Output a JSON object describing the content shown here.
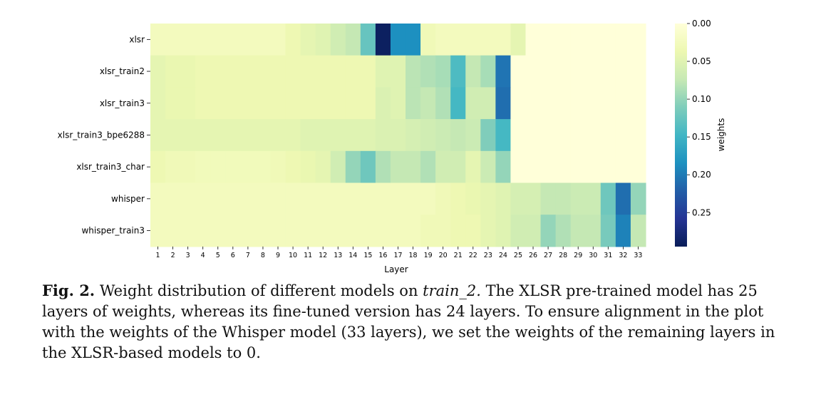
{
  "chart_data": {
    "type": "heatmap",
    "rows": [
      "xlsr",
      "xlsr_train2",
      "xlsr_train3",
      "xlsr_train3_bpe6288",
      "xlsr_train3_char",
      "whisper",
      "whisper_train3"
    ],
    "columns": [
      "1",
      "2",
      "3",
      "4",
      "5",
      "6",
      "7",
      "8",
      "9",
      "10",
      "11",
      "12",
      "13",
      "14",
      "15",
      "16",
      "17",
      "18",
      "19",
      "20",
      "21",
      "22",
      "23",
      "24",
      "25",
      "26",
      "27",
      "28",
      "29",
      "30",
      "31",
      "32",
      "33"
    ],
    "values": [
      [
        0.025,
        0.025,
        0.025,
        0.025,
        0.025,
        0.025,
        0.025,
        0.025,
        0.025,
        0.035,
        0.045,
        0.05,
        0.065,
        0.075,
        0.125,
        0.29,
        0.185,
        0.185,
        0.03,
        0.025,
        0.025,
        0.025,
        0.025,
        0.025,
        0.045,
        0,
        0,
        0,
        0,
        0,
        0,
        0,
        0
      ],
      [
        0.045,
        0.04,
        0.04,
        0.035,
        0.035,
        0.035,
        0.035,
        0.035,
        0.035,
        0.035,
        0.035,
        0.035,
        0.035,
        0.035,
        0.035,
        0.05,
        0.05,
        0.08,
        0.085,
        0.09,
        0.14,
        0.075,
        0.09,
        0.205,
        0,
        0,
        0,
        0,
        0,
        0,
        0,
        0,
        0
      ],
      [
        0.045,
        0.04,
        0.04,
        0.035,
        0.035,
        0.035,
        0.035,
        0.035,
        0.035,
        0.035,
        0.035,
        0.035,
        0.035,
        0.035,
        0.035,
        0.055,
        0.05,
        0.08,
        0.075,
        0.085,
        0.145,
        0.065,
        0.065,
        0.21,
        0,
        0,
        0,
        0,
        0,
        0,
        0,
        0,
        0
      ],
      [
        0.045,
        0.045,
        0.045,
        0.045,
        0.045,
        0.045,
        0.045,
        0.045,
        0.045,
        0.045,
        0.05,
        0.05,
        0.05,
        0.05,
        0.05,
        0.055,
        0.055,
        0.06,
        0.065,
        0.07,
        0.075,
        0.07,
        0.11,
        0.145,
        0,
        0,
        0,
        0,
        0,
        0,
        0,
        0,
        0
      ],
      [
        0.035,
        0.03,
        0.03,
        0.028,
        0.028,
        0.028,
        0.028,
        0.028,
        0.03,
        0.035,
        0.04,
        0.045,
        0.065,
        0.1,
        0.12,
        0.085,
        0.075,
        0.075,
        0.085,
        0.065,
        0.065,
        0.045,
        0.07,
        0.1,
        0,
        0,
        0,
        0,
        0,
        0,
        0,
        0,
        0
      ],
      [
        0.025,
        0.025,
        0.025,
        0.025,
        0.025,
        0.025,
        0.025,
        0.025,
        0.025,
        0.025,
        0.025,
        0.025,
        0.025,
        0.025,
        0.025,
        0.025,
        0.025,
        0.025,
        0.025,
        0.03,
        0.035,
        0.04,
        0.045,
        0.05,
        0.06,
        0.06,
        0.075,
        0.075,
        0.07,
        0.07,
        0.12,
        0.21,
        0.1
      ],
      [
        0.025,
        0.025,
        0.025,
        0.025,
        0.025,
        0.025,
        0.025,
        0.025,
        0.025,
        0.025,
        0.025,
        0.025,
        0.025,
        0.025,
        0.025,
        0.025,
        0.025,
        0.025,
        0.03,
        0.03,
        0.035,
        0.035,
        0.045,
        0.05,
        0.065,
        0.065,
        0.1,
        0.085,
        0.075,
        0.075,
        0.115,
        0.195,
        0.075
      ]
    ],
    "xlabel": "Layer",
    "colorbar_label": "weights",
    "colorbar_ticks": [
      "0.00",
      "0.05",
      "0.10",
      "0.15",
      "0.20",
      "0.25"
    ],
    "colorbar_range": [
      0,
      0.295
    ],
    "colormap": "YlGnBu"
  },
  "caption": {
    "fig_label": "Fig. 2.",
    "text_before": "Weight distribution of different models on",
    "italic_term": "train_2.",
    "text_after": "The XLSR pre-trained model has 25 layers of weights, whereas its fine-tuned version has 24 layers. To ensure alignment in the plot with the weights of the Whisper model (33 layers), we set the weights of the remaining layers in the XLSR-based models to 0."
  }
}
